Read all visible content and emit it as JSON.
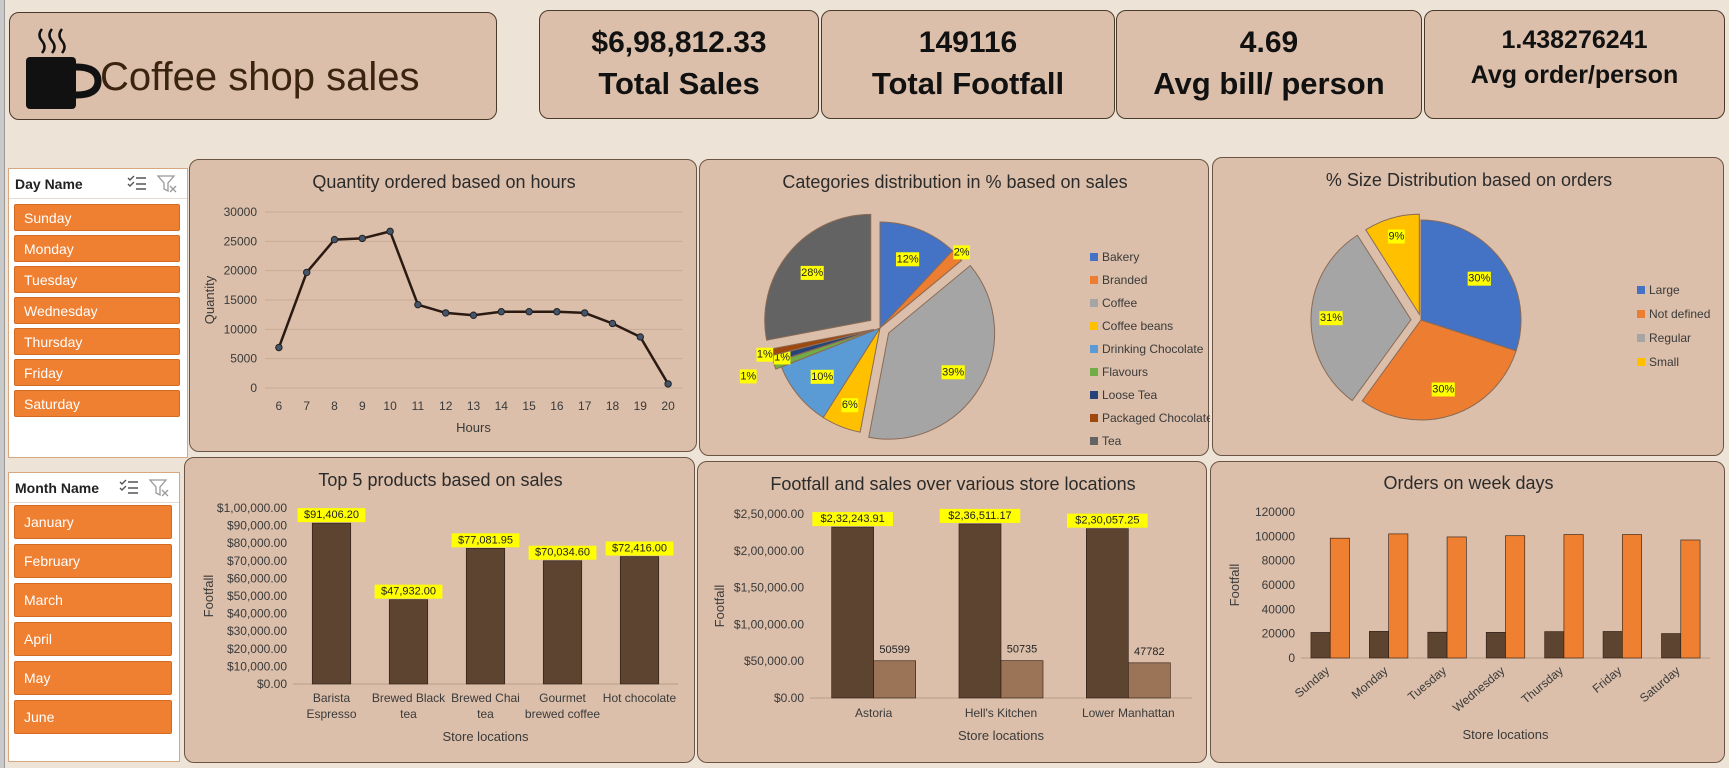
{
  "header": {
    "title": "Coffee shop sales",
    "icon": "coffee-cup-icon"
  },
  "kpis": [
    {
      "value": "$6,98,812.33",
      "label": "Total Sales"
    },
    {
      "value": "149116",
      "label": "Total Footfall"
    },
    {
      "value": "4.69",
      "label": "Avg bill/ person"
    },
    {
      "value": "1.438276241",
      "label": "Avg order/person"
    }
  ],
  "slicers": {
    "day": {
      "title": "Day Name",
      "items": [
        "Sunday",
        "Monday",
        "Tuesday",
        "Wednesday",
        "Thursday",
        "Friday",
        "Saturday"
      ]
    },
    "month": {
      "title": "Month Name",
      "items": [
        "January",
        "February",
        "March",
        "April",
        "May",
        "June"
      ]
    }
  },
  "colors": {
    "dark_brown": "#5d4431",
    "light_brown": "#9b7356",
    "orange": "#ef7f31",
    "card_bg": "#dbbfaa"
  },
  "chart_data": [
    {
      "id": "hours",
      "type": "line",
      "title": "Quantity ordered based on hours",
      "xlabel": "Hours",
      "ylabel": "Quantity",
      "x": [
        6,
        7,
        8,
        9,
        10,
        11,
        12,
        13,
        14,
        15,
        16,
        17,
        18,
        19,
        20
      ],
      "values": [
        6900,
        19700,
        25300,
        25500,
        26700,
        14200,
        12800,
        12400,
        13000,
        13000,
        13000,
        12800,
        11000,
        8700,
        700
      ],
      "ylim": [
        0,
        30000
      ],
      "yticks": [
        0,
        5000,
        10000,
        15000,
        20000,
        25000,
        30000
      ],
      "grid": true
    },
    {
      "id": "categories",
      "type": "pie",
      "title": "Categories  distribution in % based on sales",
      "labels": [
        "Bakery",
        "Branded",
        "Coffee",
        "Coffee beans",
        "Drinking Chocolate",
        "Flavours",
        "Loose Tea",
        "Packaged Chocolate",
        "Tea"
      ],
      "values": [
        12,
        2,
        39,
        6,
        10,
        1,
        1,
        1,
        28
      ],
      "data_labels": [
        "12%",
        "2%",
        "39%",
        "6%",
        "10%",
        "1%",
        "1%",
        "1%",
        "28%"
      ],
      "colors": [
        "#4472c4",
        "#ed7d31",
        "#a5a5a5",
        "#ffc000",
        "#5b9bd5",
        "#70ad47",
        "#264478",
        "#9e480e",
        "#636363"
      ],
      "legend": "right"
    },
    {
      "id": "sizes",
      "type": "pie",
      "title": "% Size Distribution based on orders",
      "labels": [
        "Large",
        "Not defined",
        "Regular",
        "Small"
      ],
      "values": [
        30,
        30,
        31,
        9
      ],
      "data_labels": [
        "30%",
        "30%",
        "31%",
        "9%"
      ],
      "colors": [
        "#4472c4",
        "#ed7d31",
        "#a5a5a5",
        "#ffc000"
      ],
      "legend": "right"
    },
    {
      "id": "top5",
      "type": "bar",
      "title": "Top 5 products based on sales",
      "xlabel": "Store locations",
      "ylabel": "Footfall",
      "categories": [
        "Barista Espresso",
        "Brewed Black tea",
        "Brewed Chai tea",
        "Gourmet brewed coffee",
        "Hot chocolate"
      ],
      "values": [
        91406.2,
        47932.0,
        77081.95,
        70034.6,
        72416.0
      ],
      "data_labels": [
        "$91,406.20",
        "$47,932.00",
        "$77,081.95",
        "$70,034.60",
        "$72,416.00"
      ],
      "ylim": [
        0,
        100000
      ],
      "yticks": [
        "$0.00",
        "$10,000.00",
        "$20,000.00",
        "$30,000.00",
        "$40,000.00",
        "$50,000.00",
        "$60,000.00",
        "$70,000.00",
        "$80,000.00",
        "$90,000.00",
        "$1,00,000.00"
      ]
    },
    {
      "id": "stores",
      "type": "bar",
      "title": "Footfall and sales over various store locations",
      "xlabel": "Store locations",
      "ylabel": "Footfall",
      "categories": [
        "Astoria",
        "Hell's Kitchen",
        "Lower Manhattan"
      ],
      "series": [
        {
          "values": [
            232243.91,
            236511.17,
            230057.25
          ],
          "data_labels": [
            "$2,32,243.91",
            "$2,36,511.17",
            "$2,30,057.25"
          ]
        },
        {
          "values": [
            50599,
            50735,
            47782
          ],
          "data_labels": [
            "50599",
            "50735",
            "47782"
          ]
        }
      ],
      "ylim": [
        0,
        250000
      ],
      "yticks": [
        "$0.00",
        "$50,000.00",
        "$1,00,000.00",
        "$1,50,000.00",
        "$2,00,000.00",
        "$2,50,000.00"
      ]
    },
    {
      "id": "weekdays",
      "type": "bar",
      "title": "Orders on week days",
      "xlabel": "Store locations",
      "ylabel": "Footfall",
      "categories": [
        "Sunday",
        "Monday",
        "Tuesday",
        "Wednesday",
        "Thursday",
        "Friday",
        "Saturday"
      ],
      "series": [
        {
          "values": [
            21000,
            21900,
            21200,
            21100,
            21700,
            21800,
            20100
          ]
        },
        {
          "values": [
            98500,
            102000,
            99500,
            100500,
            101500,
            101500,
            97000
          ]
        }
      ],
      "ylim": [
        0,
        120000
      ],
      "yticks": [
        0,
        20000,
        40000,
        60000,
        80000,
        100000,
        120000
      ]
    }
  ]
}
